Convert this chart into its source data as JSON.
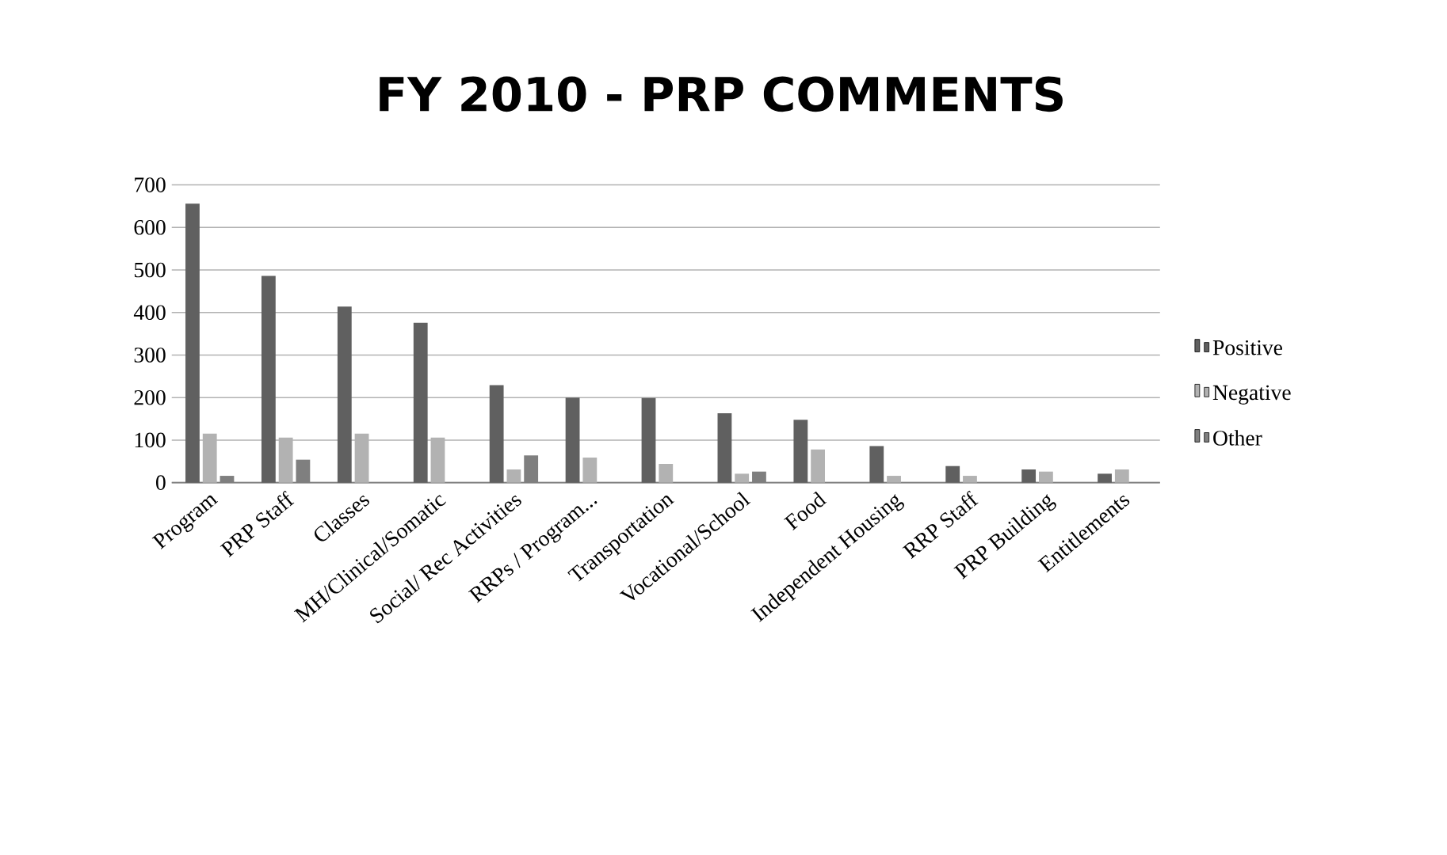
{
  "chart_data": {
    "type": "bar",
    "title": "FY 2010 - PRP COMMENTS",
    "categories": [
      "Program",
      "PRP Staff",
      "Classes",
      "MH/Clinical/Somatic",
      "Social/ Rec Activities",
      "RRPs / Program...",
      "Transportation",
      "Vocational/School",
      "Food",
      "Independent Housing",
      "RRP Staff",
      "PRP Building",
      "Entitlements"
    ],
    "series": [
      {
        "name": "Positive",
        "color": "#606060",
        "values": [
          656,
          486,
          414,
          376,
          229,
          200,
          199,
          163,
          148,
          86,
          39,
          31,
          21
        ]
      },
      {
        "name": "Negative",
        "color": "#b2b2b2",
        "values": [
          115,
          106,
          115,
          106,
          31,
          59,
          44,
          21,
          78,
          16,
          16,
          26,
          31
        ]
      },
      {
        "name": "Other",
        "color": "#7f7f7f",
        "values": [
          16,
          54,
          0,
          0,
          64,
          0,
          0,
          26,
          0,
          0,
          0,
          0,
          0
        ]
      }
    ],
    "ylim": [
      0,
      700
    ],
    "yticks": [
      0,
      100,
      200,
      300,
      400,
      500,
      600,
      700
    ],
    "grid": "y",
    "legend": "right"
  }
}
